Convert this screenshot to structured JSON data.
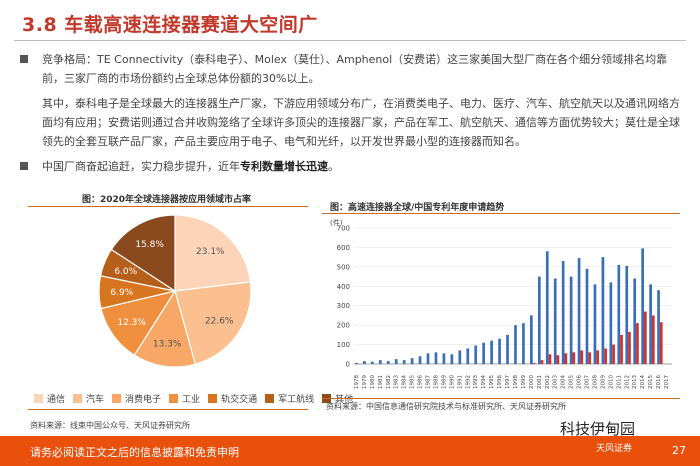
{
  "page": {
    "title": "3.8 车载高速连接器赛道大空间广",
    "bullets": [
      "竞争格局：TE Connectivity（泰科电子）、Molex（莫仕）、Amphenol（安费诺）这三家美国大型厂商在各个细分领域排名均靠前，三家厂商的市场份额约占全球总体份额的30%以上。",
      "其中，泰科电子是全球最大的连接器生产厂家，下游应用领域分布广，在消费类电子、电力、医疗、汽车、航空航天以及通讯网络方面均有应用；安费诺则通过合并收购笼络了全球许多顶尖的连接器厂家，产品在军工、航空航天、通信等方面优势较大；莫仕是全球领先的全套互联产品厂家，产品主要应用于电子、电气和光纤，以开发世界最小型的连接器而知名。",
      "中国厂商奋起追赶，实力稳步提升，近年",
      "专利数量增长迅速",
      "。"
    ],
    "footer": "请务必阅读正文之后的信息披露和免责申明",
    "page_number": "27",
    "watermark": "科技伊甸园",
    "logo_text": "天风证券"
  },
  "chart_data": [
    {
      "type": "pie",
      "title": "图：2020年全球连接器按应用领域市占率",
      "categories": [
        "通信",
        "汽车",
        "消费电子",
        "工业",
        "轨交交通",
        "军工航线",
        "其他"
      ],
      "values": [
        23.1,
        22.6,
        13.3,
        12.3,
        6.9,
        6.0,
        15.8
      ],
      "labels": [
        "23.1%",
        "22.6%",
        "13.3%",
        "12.3%",
        "6.9%",
        "6.0%",
        "15.8%"
      ],
      "colors": [
        "#fcd5b8",
        "#fbbf90",
        "#f8a767",
        "#f08f3d",
        "#d8761f",
        "#b55f1a",
        "#8a4a1e"
      ],
      "source": "资料来源：线束中国公众号、天风证券研究所"
    },
    {
      "type": "bar",
      "title": "图：高速连接器全球/中国专利年度申请趋势",
      "unit": "(件)",
      "categories": [
        "1978",
        "1979",
        "1980",
        "1981",
        "1982",
        "1983",
        "1984",
        "1985",
        "1986",
        "1987",
        "1988",
        "1989",
        "1990",
        "1991",
        "1992",
        "1993",
        "1994",
        "1995",
        "1996",
        "1997",
        "1998",
        "1999",
        "2000",
        "2001",
        "2002",
        "2003",
        "2004",
        "2005",
        "2006",
        "2007",
        "2008",
        "2009",
        "2010",
        "2011",
        "2012",
        "2013",
        "2014",
        "2015",
        "2016",
        "2017"
      ],
      "series": [
        {
          "name": "全球",
          "color": "#3a6fb6",
          "values": [
            5,
            15,
            12,
            20,
            15,
            25,
            20,
            30,
            40,
            55,
            60,
            55,
            50,
            70,
            80,
            95,
            110,
            120,
            130,
            150,
            200,
            210,
            250,
            450,
            580,
            440,
            530,
            450,
            545,
            490,
            410,
            550,
            420,
            510,
            505,
            440,
            595,
            410,
            380,
            0
          ]
        },
        {
          "name": "中国",
          "color": "#cc3333",
          "values": [
            0,
            0,
            0,
            0,
            0,
            0,
            0,
            0,
            0,
            0,
            0,
            0,
            0,
            0,
            0,
            0,
            0,
            0,
            0,
            0,
            0,
            0,
            5,
            20,
            50,
            45,
            55,
            60,
            70,
            60,
            70,
            80,
            100,
            150,
            165,
            210,
            270,
            250,
            215,
            0
          ]
        }
      ],
      "ylim": [
        0,
        700
      ],
      "yticks": [
        0,
        100,
        200,
        300,
        400,
        500,
        600,
        700
      ],
      "source": "资料来源：中国信息通信研究院技术与标准研究所、天风证券研究所"
    }
  ]
}
